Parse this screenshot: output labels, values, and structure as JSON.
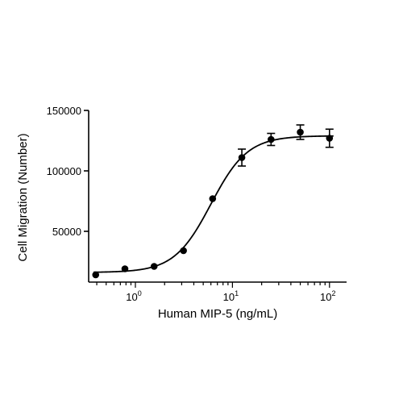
{
  "chart_data": {
    "type": "scatter",
    "title": "",
    "xlabel": "Human MIP-5 (ng/mL)",
    "ylabel": "Cell Migration (Number)",
    "x_scale": "log",
    "xlim": [
      0.33,
      150
    ],
    "ylim": [
      8000,
      150000
    ],
    "x_ticks": [
      {
        "value": 1,
        "base": "10",
        "exp": "0"
      },
      {
        "value": 10,
        "base": "10",
        "exp": "1"
      },
      {
        "value": 100,
        "base": "10",
        "exp": "2"
      }
    ],
    "y_ticks": [
      {
        "value": 50000,
        "label": "50000"
      },
      {
        "value": 100000,
        "label": "100000"
      },
      {
        "value": 150000,
        "label": "150000"
      }
    ],
    "grid": false,
    "legend": "none",
    "colors": {
      "marker": "#000000",
      "line": "#000000",
      "axis": "#000000"
    },
    "series": [
      {
        "points": [
          {
            "x": 0.39,
            "y": 14000,
            "err": 0
          },
          {
            "x": 0.78,
            "y": 19000,
            "err": 0
          },
          {
            "x": 1.56,
            "y": 21000,
            "err": 0
          },
          {
            "x": 3.13,
            "y": 34000,
            "err": 0
          },
          {
            "x": 6.25,
            "y": 77000,
            "err": 0
          },
          {
            "x": 12.5,
            "y": 111000,
            "err": 7000
          },
          {
            "x": 25,
            "y": 126000,
            "err": 5000
          },
          {
            "x": 50,
            "y": 132000,
            "err": 6000
          },
          {
            "x": 100,
            "y": 127000,
            "err": 7500
          }
        ],
        "fit": {
          "model": "4PL",
          "bottom": 16000,
          "top": 129000,
          "ec50": 6.0,
          "hill": 2.3
        }
      }
    ]
  }
}
